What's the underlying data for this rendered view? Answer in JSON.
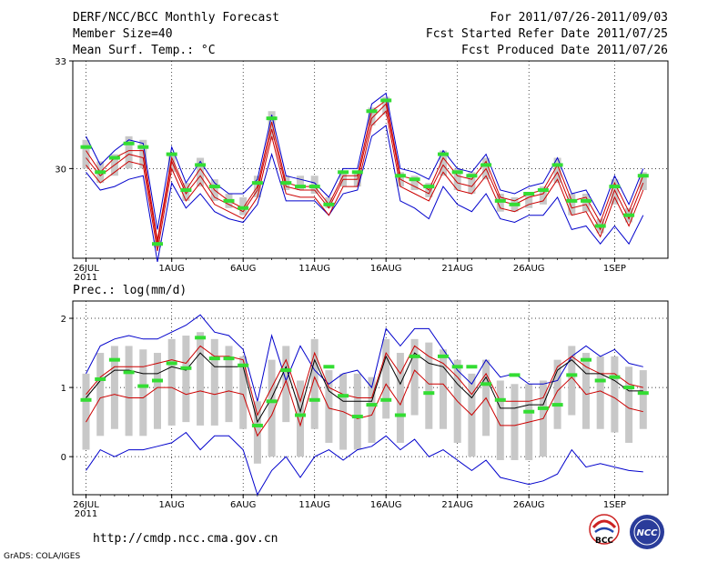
{
  "header": {
    "title": "DERF/NCC/BCC Monthly Forecast",
    "member_size": "Member Size=40",
    "variable": "Mean Surf. Temp.: °C",
    "forecast_period": "For 2011/07/26-2011/09/03",
    "fcst_started": "Fcst Started Refer Date 2011/07/25",
    "fcst_produced": "Fcst Produced Date 2011/07/26"
  },
  "footer": {
    "url": "http://cmdp.ncc.cma.gov.cn",
    "credit": "GrADS: COLA/IGES",
    "logo_bcc": "BCC",
    "logo_ncc": "NCC"
  },
  "colors": {
    "box": "#c8c8c8",
    "envelope": "#0000cc",
    "mean": "#cc0000",
    "median": "#000000",
    "observed": "#33dd33",
    "grid": "#000000"
  },
  "chart_data": [
    {
      "type": "line",
      "title": "Mean Surf. Temp.: °C",
      "xlabel": "",
      "ylabel": "Mean Surf. Temp. (°C)",
      "ylim": [
        27.5,
        33
      ],
      "yticks": [
        30,
        33
      ],
      "x": [
        1,
        2,
        3,
        4,
        5,
        6,
        7,
        8,
        9,
        10,
        11,
        12,
        13,
        14,
        15,
        16,
        17,
        18,
        19,
        20,
        21,
        22,
        23,
        24,
        25,
        26,
        27,
        28,
        29,
        30,
        31,
        32,
        33,
        34,
        35,
        36,
        37,
        38,
        39,
        40
      ],
      "xtick_labels": [
        {
          "day": 1,
          "label": "26JUL",
          "sub": "2011"
        },
        {
          "day": 7,
          "label": "1AUG"
        },
        {
          "day": 12,
          "label": "6AUG"
        },
        {
          "day": 17,
          "label": "11AUG"
        },
        {
          "day": 22,
          "label": "16AUG"
        },
        {
          "day": 27,
          "label": "21AUG"
        },
        {
          "day": 32,
          "label": "26AUG"
        },
        {
          "day": 38,
          "label": "1SEP"
        }
      ],
      "series": [
        {
          "name": "max",
          "values": [
            30.9,
            30.1,
            30.5,
            30.8,
            30.7,
            28.3,
            30.6,
            29.6,
            30.2,
            29.6,
            29.3,
            29.3,
            29.7,
            31.5,
            29.8,
            29.7,
            29.6,
            29.2,
            30.0,
            30.0,
            31.8,
            32.1,
            30.0,
            29.9,
            29.7,
            30.5,
            30.0,
            29.9,
            30.4,
            29.4,
            29.3,
            29.5,
            29.6,
            30.3,
            29.3,
            29.4,
            28.7,
            29.8,
            29.0,
            30.0
          ]
        },
        {
          "name": "mean+sd",
          "values": [
            30.5,
            29.9,
            30.3,
            30.5,
            30.5,
            28.0,
            30.3,
            29.4,
            30.0,
            29.4,
            29.1,
            28.9,
            29.5,
            31.3,
            29.6,
            29.5,
            29.5,
            29.0,
            29.8,
            29.8,
            31.6,
            31.9,
            29.8,
            29.7,
            29.4,
            30.3,
            29.8,
            29.7,
            30.2,
            29.2,
            29.1,
            29.3,
            29.4,
            30.1,
            29.1,
            29.2,
            28.5,
            29.6,
            28.8,
            29.8
          ]
        },
        {
          "name": "mean",
          "values": [
            30.3,
            29.8,
            30.1,
            30.4,
            30.3,
            27.9,
            30.2,
            29.3,
            29.8,
            29.2,
            29.0,
            28.8,
            29.4,
            31.1,
            29.5,
            29.4,
            29.4,
            28.9,
            29.7,
            29.7,
            31.4,
            31.8,
            29.7,
            29.5,
            29.3,
            30.1,
            29.6,
            29.5,
            30.0,
            29.1,
            29.0,
            29.2,
            29.3,
            29.9,
            28.9,
            29.0,
            28.3,
            29.4,
            28.6,
            29.6
          ]
        },
        {
          "name": "mean-sd",
          "values": [
            30.1,
            29.6,
            29.9,
            30.2,
            30.1,
            27.7,
            30.0,
            29.1,
            29.6,
            29.0,
            28.8,
            28.6,
            29.2,
            30.9,
            29.3,
            29.2,
            29.2,
            28.7,
            29.5,
            29.5,
            31.2,
            31.6,
            29.5,
            29.3,
            29.1,
            29.9,
            29.4,
            29.3,
            29.8,
            28.9,
            28.8,
            29.0,
            29.1,
            29.7,
            28.7,
            28.8,
            28.1,
            29.2,
            28.4,
            29.4
          ]
        },
        {
          "name": "min",
          "values": [
            29.9,
            29.4,
            29.5,
            29.7,
            29.8,
            27.4,
            29.6,
            28.9,
            29.3,
            28.8,
            28.6,
            28.5,
            29.0,
            30.4,
            29.1,
            29.1,
            29.1,
            28.7,
            29.3,
            29.4,
            30.9,
            31.2,
            29.1,
            28.9,
            28.6,
            29.5,
            29.0,
            28.8,
            29.3,
            28.6,
            28.5,
            28.7,
            28.7,
            29.2,
            28.3,
            28.4,
            27.9,
            28.4,
            27.9,
            28.7
          ]
        },
        {
          "name": "box_high",
          "values": [
            30.8,
            30.2,
            30.4,
            30.9,
            30.8,
            28.0,
            30.4,
            29.6,
            30.3,
            29.7,
            29.3,
            29.2,
            29.8,
            31.6,
            29.8,
            29.8,
            29.8,
            29.2,
            29.9,
            29.9,
            31.7,
            32.0,
            29.9,
            29.8,
            29.6,
            30.5,
            30.0,
            29.9,
            30.3,
            29.3,
            29.2,
            29.3,
            29.5,
            30.3,
            29.3,
            29.3,
            28.6,
            29.7,
            28.9,
            29.9
          ]
        },
        {
          "name": "box_low",
          "values": [
            30.0,
            29.6,
            29.8,
            30.0,
            30.0,
            27.8,
            29.9,
            29.1,
            29.5,
            29.1,
            28.9,
            28.7,
            29.2,
            30.8,
            29.4,
            29.4,
            29.3,
            28.9,
            29.5,
            29.5,
            31.2,
            31.5,
            29.5,
            29.4,
            29.2,
            29.8,
            29.4,
            29.3,
            29.7,
            28.8,
            28.8,
            28.9,
            29.0,
            29.6,
            28.7,
            28.8,
            28.2,
            29.0,
            28.5,
            29.4
          ]
        },
        {
          "name": "observed",
          "values": [
            30.6,
            29.9,
            30.3,
            30.7,
            30.6,
            27.9,
            30.4,
            29.4,
            30.1,
            29.5,
            29.1,
            28.9,
            29.6,
            31.4,
            29.6,
            29.5,
            29.5,
            29.0,
            29.9,
            29.9,
            31.6,
            31.9,
            29.8,
            29.7,
            29.5,
            30.4,
            29.9,
            29.8,
            30.1,
            29.1,
            29.0,
            29.3,
            29.4,
            30.1,
            29.1,
            29.1,
            28.4,
            29.5,
            28.7,
            29.8
          ]
        }
      ]
    },
    {
      "type": "line",
      "title": "Prec.: log(mm/d)",
      "xlabel": "",
      "ylabel": "log(mm/d)",
      "ylim": [
        -0.55,
        2.25
      ],
      "yticks": [
        0,
        1,
        2
      ],
      "x": [
        1,
        2,
        3,
        4,
        5,
        6,
        7,
        8,
        9,
        10,
        11,
        12,
        13,
        14,
        15,
        16,
        17,
        18,
        19,
        20,
        21,
        22,
        23,
        24,
        25,
        26,
        27,
        28,
        29,
        30,
        31,
        32,
        33,
        34,
        35,
        36,
        37,
        38,
        39,
        40
      ],
      "xtick_labels": [
        {
          "day": 1,
          "label": "26JUL",
          "sub": "2011"
        },
        {
          "day": 7,
          "label": "1AUG"
        },
        {
          "day": 12,
          "label": "6AUG"
        },
        {
          "day": 17,
          "label": "11AUG"
        },
        {
          "day": 22,
          "label": "16AUG"
        },
        {
          "day": 27,
          "label": "21AUG"
        },
        {
          "day": 32,
          "label": "26AUG"
        },
        {
          "day": 38,
          "label": "1SEP"
        }
      ],
      "series": [
        {
          "name": "max",
          "values": [
            1.2,
            1.6,
            1.7,
            1.75,
            1.7,
            1.7,
            1.8,
            1.9,
            2.05,
            1.8,
            1.75,
            1.55,
            0.8,
            1.75,
            1.1,
            1.6,
            1.25,
            1.05,
            1.2,
            1.25,
            1.0,
            1.85,
            1.6,
            1.85,
            1.85,
            1.55,
            1.25,
            1.05,
            1.4,
            1.15,
            1.2,
            1.05,
            1.05,
            1.1,
            1.45,
            1.6,
            1.45,
            1.55,
            1.35,
            1.3
          ]
        },
        {
          "name": "mean+sd",
          "values": [
            0.9,
            1.15,
            1.3,
            1.3,
            1.3,
            1.35,
            1.4,
            1.35,
            1.6,
            1.45,
            1.45,
            1.4,
            0.6,
            1.0,
            1.4,
            0.8,
            1.5,
            1.0,
            0.9,
            0.85,
            0.85,
            1.5,
            1.2,
            1.6,
            1.45,
            1.35,
            1.15,
            0.9,
            1.2,
            0.8,
            0.8,
            0.8,
            0.85,
            1.3,
            1.45,
            1.3,
            1.2,
            1.2,
            1.05,
            1.0
          ]
        },
        {
          "name": "median",
          "values": [
            0.85,
            1.1,
            1.25,
            1.25,
            1.2,
            1.2,
            1.3,
            1.25,
            1.5,
            1.3,
            1.3,
            1.3,
            0.5,
            0.85,
            1.3,
            0.65,
            1.4,
            0.95,
            0.8,
            0.8,
            0.8,
            1.45,
            1.05,
            1.5,
            1.35,
            1.3,
            1.05,
            0.85,
            1.15,
            0.7,
            0.7,
            0.75,
            0.75,
            1.25,
            1.4,
            1.2,
            1.2,
            1.1,
            0.95,
            0.95
          ]
        },
        {
          "name": "mean",
          "values": [
            0.5,
            0.85,
            0.9,
            0.85,
            0.85,
            1.0,
            1.0,
            0.9,
            0.95,
            0.9,
            0.95,
            0.9,
            0.3,
            0.6,
            1.1,
            0.45,
            1.15,
            0.7,
            0.65,
            0.55,
            0.6,
            1.05,
            0.75,
            1.25,
            1.05,
            1.05,
            0.8,
            0.6,
            0.85,
            0.45,
            0.45,
            0.5,
            0.55,
            0.95,
            1.15,
            0.9,
            0.95,
            0.85,
            0.7,
            0.65
          ]
        },
        {
          "name": "min",
          "values": [
            -0.2,
            0.1,
            0.0,
            0.1,
            0.1,
            0.15,
            0.2,
            0.35,
            0.1,
            0.3,
            0.3,
            0.1,
            -0.55,
            -0.2,
            0.0,
            -0.3,
            0.0,
            0.1,
            -0.05,
            0.1,
            0.15,
            0.3,
            0.1,
            0.25,
            0.0,
            0.1,
            -0.05,
            -0.2,
            -0.05,
            -0.3,
            -0.35,
            -0.4,
            -0.35,
            -0.25,
            0.1,
            -0.15,
            -0.1,
            -0.15,
            -0.2,
            -0.22
          ]
        },
        {
          "name": "box_high",
          "values": [
            1.2,
            1.5,
            1.6,
            1.6,
            1.55,
            1.5,
            1.7,
            1.75,
            1.8,
            1.7,
            1.6,
            1.45,
            0.8,
            1.4,
            1.6,
            1.1,
            1.7,
            1.25,
            1.2,
            1.2,
            1.15,
            1.7,
            1.5,
            1.7,
            1.65,
            1.55,
            1.4,
            1.2,
            1.4,
            1.1,
            1.05,
            1.05,
            1.1,
            1.4,
            1.6,
            1.5,
            1.45,
            1.45,
            1.3,
            1.25
          ]
        },
        {
          "name": "box_low",
          "values": [
            0.1,
            0.3,
            0.4,
            0.3,
            0.3,
            0.4,
            0.45,
            0.5,
            0.45,
            0.45,
            0.5,
            0.4,
            -0.1,
            0.0,
            0.5,
            0.0,
            0.4,
            0.2,
            0.1,
            0.1,
            0.2,
            0.55,
            0.2,
            0.6,
            0.4,
            0.4,
            0.2,
            0.0,
            0.3,
            -0.05,
            -0.05,
            -0.05,
            0.0,
            0.4,
            0.6,
            0.4,
            0.4,
            0.35,
            0.2,
            0.4
          ]
        },
        {
          "name": "observed",
          "values": [
            0.82,
            1.12,
            1.4,
            1.22,
            1.02,
            1.1,
            1.35,
            1.28,
            1.72,
            1.42,
            1.42,
            1.32,
            0.45,
            0.8,
            1.25,
            0.6,
            0.82,
            1.3,
            0.88,
            0.58,
            0.75,
            0.82,
            0.6,
            1.45,
            0.92,
            1.45,
            1.3,
            1.3,
            1.05,
            0.82,
            1.18,
            0.65,
            0.7,
            0.75,
            1.18,
            1.4,
            1.1,
            1.15,
            1.0,
            0.92
          ]
        }
      ]
    }
  ]
}
